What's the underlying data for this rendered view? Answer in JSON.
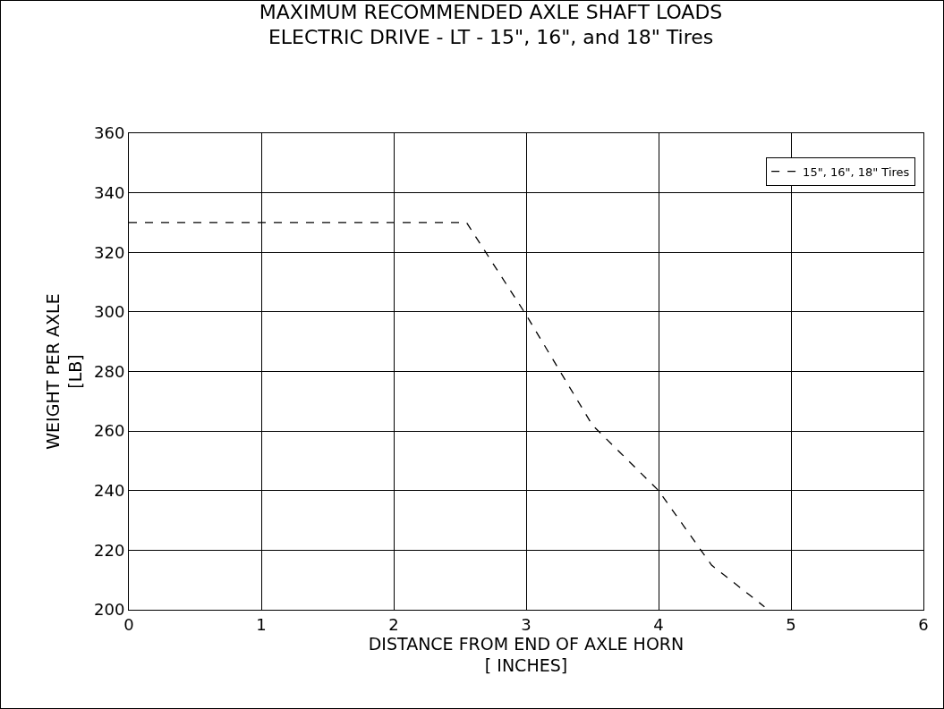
{
  "chart_data": {
    "type": "line",
    "title": "MAXIMUM RECOMMENDED AXLE SHAFT LOADS",
    "subtitle": "ELECTRIC DRIVE - LT - 15\", 16\", and 18\" Tires",
    "xlabel": "DISTANCE FROM END OF AXLE HORN\n[ INCHES]",
    "ylabel": "WEIGHT PER AXLE\n[LB]",
    "x": [
      0,
      2.55,
      3,
      3.5,
      4,
      4.4,
      4.8
    ],
    "series": [
      {
        "name": "15\", 16\", 18\" Tires",
        "color": "#000000",
        "values": [
          330,
          330,
          299,
          262,
          240,
          215,
          201
        ]
      }
    ],
    "xlim": [
      0,
      6
    ],
    "xticks": [
      0,
      1,
      2,
      3,
      4,
      5,
      6
    ],
    "ylim": [
      200,
      360
    ],
    "yticks": [
      200,
      220,
      240,
      260,
      280,
      300,
      320,
      340,
      360
    ],
    "grid": true,
    "legend": "top right",
    "line_style": "dashed",
    "marker": "none"
  }
}
